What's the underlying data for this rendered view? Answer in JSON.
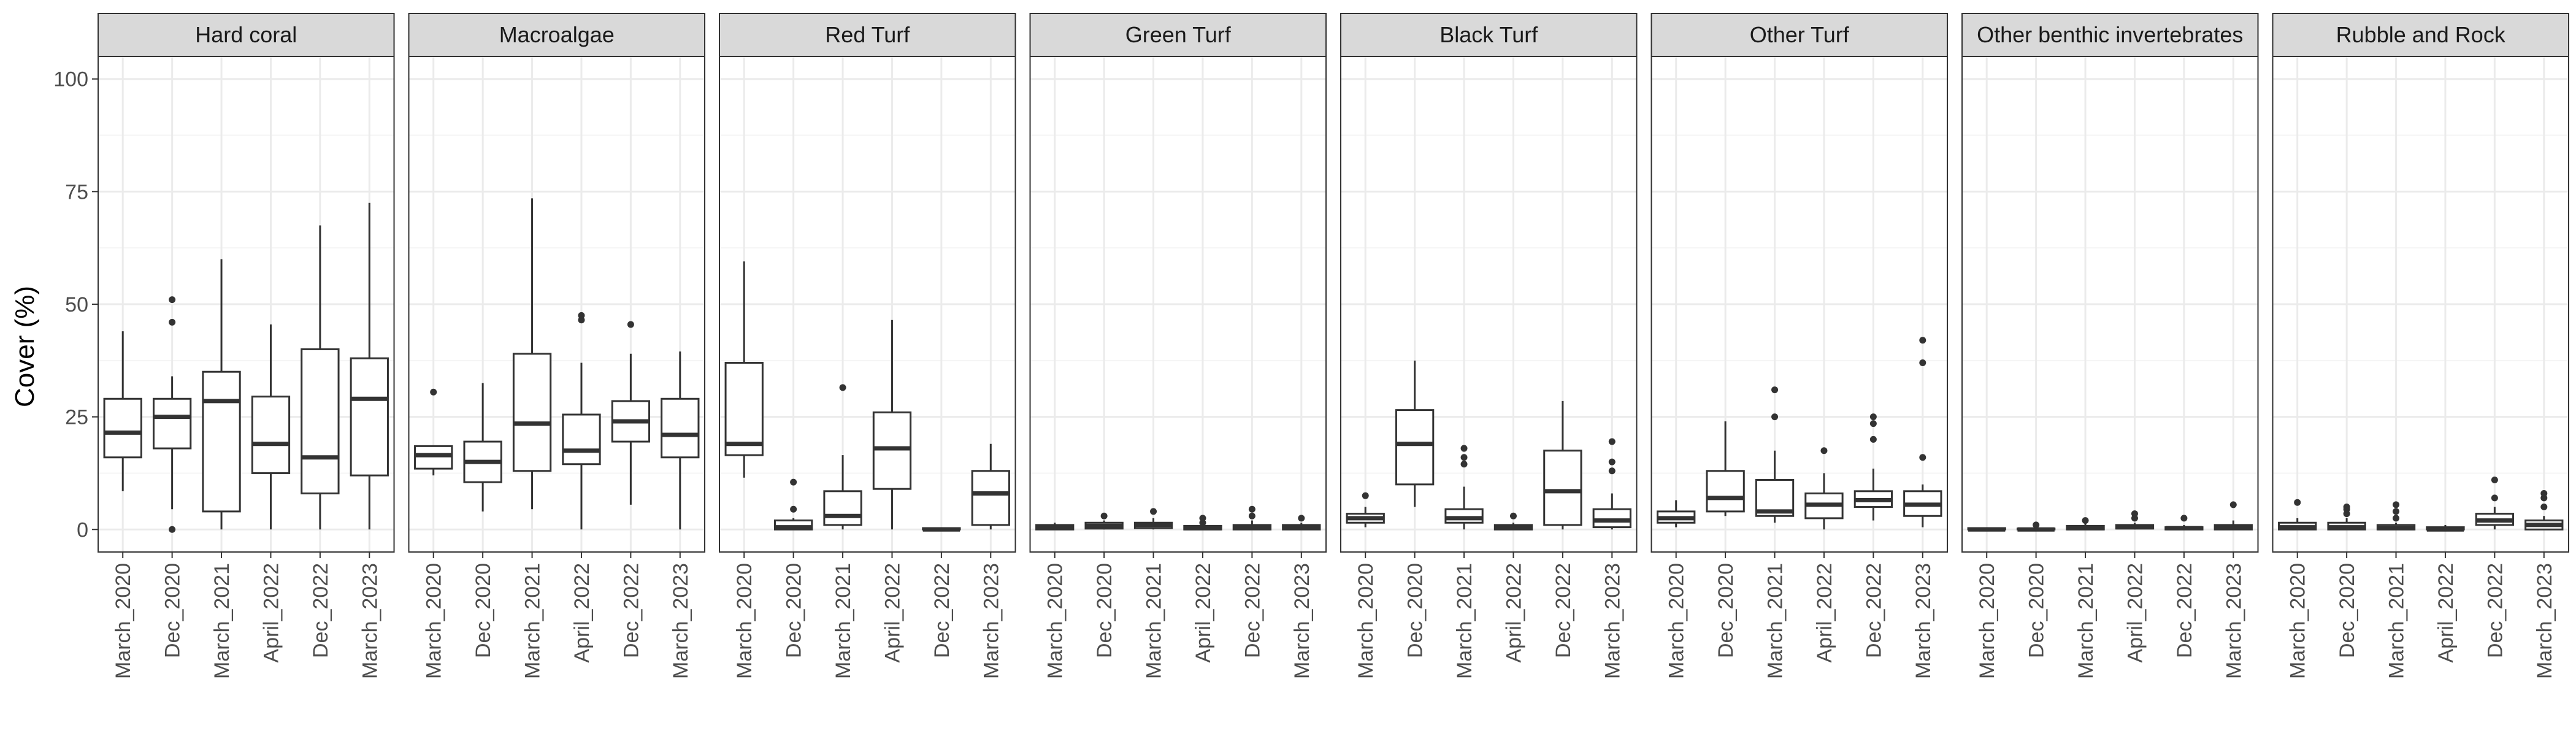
{
  "chart_data": {
    "type": "box",
    "ylabel": "Cover (%)",
    "xlabel": "",
    "ylim": [
      0,
      100
    ],
    "yticks": [
      0,
      25,
      50,
      75,
      100
    ],
    "categories": [
      "March_2020",
      "Dec_2020",
      "March_2021",
      "April_2022",
      "Dec_2022",
      "March_2023"
    ],
    "grid": true,
    "theme": "bw",
    "colors": {
      "box_line": "#333333",
      "strip_fill": "#d9d9d9",
      "grid_major": "#ebebeb",
      "grid_minor": "#f5f5f5",
      "panel_border": "#333333"
    },
    "panels": [
      {
        "name": "Hard coral",
        "boxes": [
          {
            "category": "March_2020",
            "lower_whisker": 8.5,
            "q1": 16,
            "median": 21.5,
            "q3": 29,
            "upper_whisker": 44,
            "outliers": []
          },
          {
            "category": "Dec_2020",
            "lower_whisker": 4.5,
            "q1": 18,
            "median": 25,
            "q3": 29,
            "upper_whisker": 34,
            "outliers": [
              0,
              46,
              51
            ]
          },
          {
            "category": "March_2021",
            "lower_whisker": 0,
            "q1": 4,
            "median": 28.5,
            "q3": 35,
            "upper_whisker": 60,
            "outliers": []
          },
          {
            "category": "April_2022",
            "lower_whisker": 0,
            "q1": 12.5,
            "median": 19,
            "q3": 29.5,
            "upper_whisker": 45.5,
            "outliers": []
          },
          {
            "category": "Dec_2022",
            "lower_whisker": 0,
            "q1": 8,
            "median": 16,
            "q3": 40,
            "upper_whisker": 67.5,
            "outliers": []
          },
          {
            "category": "March_2023",
            "lower_whisker": 0,
            "q1": 12,
            "median": 29,
            "q3": 38,
            "upper_whisker": 72.5,
            "outliers": []
          }
        ]
      },
      {
        "name": "Macroalgae",
        "boxes": [
          {
            "category": "March_2020",
            "lower_whisker": 12,
            "q1": 13.5,
            "median": 16.5,
            "q3": 18.5,
            "upper_whisker": 18.5,
            "outliers": [
              30.5
            ]
          },
          {
            "category": "Dec_2020",
            "lower_whisker": 4,
            "q1": 10.5,
            "median": 15,
            "q3": 19.5,
            "upper_whisker": 32.5,
            "outliers": []
          },
          {
            "category": "March_2021",
            "lower_whisker": 4.5,
            "q1": 13,
            "median": 23.5,
            "q3": 39,
            "upper_whisker": 73.5,
            "outliers": []
          },
          {
            "category": "April_2022",
            "lower_whisker": 0,
            "q1": 14.5,
            "median": 17.5,
            "q3": 25.5,
            "upper_whisker": 37,
            "outliers": [
              46.5,
              47.5
            ]
          },
          {
            "category": "Dec_2022",
            "lower_whisker": 5.5,
            "q1": 19.5,
            "median": 24,
            "q3": 28.5,
            "upper_whisker": 39,
            "outliers": [
              45.5
            ]
          },
          {
            "category": "March_2023",
            "lower_whisker": 0,
            "q1": 16,
            "median": 21,
            "q3": 29,
            "upper_whisker": 39.5,
            "outliers": []
          }
        ]
      },
      {
        "name": "Red Turf",
        "boxes": [
          {
            "category": "March_2020",
            "lower_whisker": 11.5,
            "q1": 16.5,
            "median": 19,
            "q3": 37,
            "upper_whisker": 59.5,
            "outliers": []
          },
          {
            "category": "Dec_2020",
            "lower_whisker": 0,
            "q1": 0,
            "median": 0.5,
            "q3": 2,
            "upper_whisker": 2.5,
            "outliers": [
              4.5,
              10.5
            ]
          },
          {
            "category": "March_2021",
            "lower_whisker": 0,
            "q1": 1,
            "median": 3,
            "q3": 8.5,
            "upper_whisker": 16.5,
            "outliers": [
              31.5
            ]
          },
          {
            "category": "April_2022",
            "lower_whisker": 0,
            "q1": 9,
            "median": 18,
            "q3": 26,
            "upper_whisker": 46.5,
            "outliers": []
          },
          {
            "category": "Dec_2022",
            "lower_whisker": 0,
            "q1": 0,
            "median": 0,
            "q3": 0.3,
            "upper_whisker": 0.5,
            "outliers": []
          },
          {
            "category": "March_2023",
            "lower_whisker": 0,
            "q1": 1,
            "median": 8,
            "q3": 13,
            "upper_whisker": 19,
            "outliers": []
          }
        ]
      },
      {
        "name": "Green Turf",
        "boxes": [
          {
            "category": "March_2020",
            "lower_whisker": 0,
            "q1": 0,
            "median": 0.5,
            "q3": 1,
            "upper_whisker": 1.5,
            "outliers": []
          },
          {
            "category": "Dec_2020",
            "lower_whisker": 0,
            "q1": 0.2,
            "median": 0.8,
            "q3": 1.5,
            "upper_whisker": 2,
            "outliers": [
              3
            ]
          },
          {
            "category": "March_2021",
            "lower_whisker": 0,
            "q1": 0.3,
            "median": 1,
            "q3": 1.5,
            "upper_whisker": 2.5,
            "outliers": [
              4
            ]
          },
          {
            "category": "April_2022",
            "lower_whisker": 0,
            "q1": 0,
            "median": 0.3,
            "q3": 0.8,
            "upper_whisker": 1,
            "outliers": [
              1.5,
              2.5
            ]
          },
          {
            "category": "Dec_2022",
            "lower_whisker": 0,
            "q1": 0,
            "median": 0.5,
            "q3": 1,
            "upper_whisker": 2,
            "outliers": [
              3,
              4.5
            ]
          },
          {
            "category": "March_2023",
            "lower_whisker": 0,
            "q1": 0,
            "median": 0.5,
            "q3": 1,
            "upper_whisker": 1.5,
            "outliers": [
              2.5
            ]
          }
        ]
      },
      {
        "name": "Black Turf",
        "boxes": [
          {
            "category": "March_2020",
            "lower_whisker": 0.5,
            "q1": 1.5,
            "median": 2.5,
            "q3": 3.5,
            "upper_whisker": 5,
            "outliers": [
              7.5
            ]
          },
          {
            "category": "Dec_2020",
            "lower_whisker": 5,
            "q1": 10,
            "median": 19,
            "q3": 26.5,
            "upper_whisker": 37.5,
            "outliers": []
          },
          {
            "category": "March_2021",
            "lower_whisker": 0,
            "q1": 1.5,
            "median": 2.5,
            "q3": 4.5,
            "upper_whisker": 9.5,
            "outliers": [
              14.5,
              16,
              18
            ]
          },
          {
            "category": "April_2022",
            "lower_whisker": 0,
            "q1": 0,
            "median": 0.5,
            "q3": 1,
            "upper_whisker": 1.5,
            "outliers": [
              3
            ]
          },
          {
            "category": "Dec_2022",
            "lower_whisker": 0,
            "q1": 1,
            "median": 8.5,
            "q3": 17.5,
            "upper_whisker": 28.5,
            "outliers": []
          },
          {
            "category": "March_2023",
            "lower_whisker": 0,
            "q1": 0.5,
            "median": 2,
            "q3": 4.5,
            "upper_whisker": 8,
            "outliers": [
              13,
              15,
              19.5
            ]
          }
        ]
      },
      {
        "name": "Other Turf",
        "boxes": [
          {
            "category": "March_2020",
            "lower_whisker": 0.5,
            "q1": 1.5,
            "median": 2.5,
            "q3": 4,
            "upper_whisker": 6.5,
            "outliers": []
          },
          {
            "category": "Dec_2020",
            "lower_whisker": 3,
            "q1": 4,
            "median": 7,
            "q3": 13,
            "upper_whisker": 24,
            "outliers": []
          },
          {
            "category": "March_2021",
            "lower_whisker": 1.5,
            "q1": 3,
            "median": 4,
            "q3": 11,
            "upper_whisker": 17.5,
            "outliers": [
              25,
              31
            ]
          },
          {
            "category": "April_2022",
            "lower_whisker": 0,
            "q1": 2.5,
            "median": 5.5,
            "q3": 8,
            "upper_whisker": 12.5,
            "outliers": [
              17.5
            ]
          },
          {
            "category": "Dec_2022",
            "lower_whisker": 2,
            "q1": 5,
            "median": 6.5,
            "q3": 8.5,
            "upper_whisker": 13.5,
            "outliers": [
              20,
              23.5,
              25
            ]
          },
          {
            "category": "March_2023",
            "lower_whisker": 0.5,
            "q1": 3,
            "median": 5.5,
            "q3": 8.5,
            "upper_whisker": 10,
            "outliers": [
              16,
              37,
              42
            ]
          }
        ]
      },
      {
        "name": "Other benthic invertebrates",
        "boxes": [
          {
            "category": "March_2020",
            "lower_whisker": 0,
            "q1": 0,
            "median": 0,
            "q3": 0.3,
            "upper_whisker": 0.5,
            "outliers": []
          },
          {
            "category": "Dec_2020",
            "lower_whisker": 0,
            "q1": 0,
            "median": 0,
            "q3": 0.2,
            "upper_whisker": 0.5,
            "outliers": [
              1
            ]
          },
          {
            "category": "March_2021",
            "lower_whisker": 0,
            "q1": 0,
            "median": 0.3,
            "q3": 0.8,
            "upper_whisker": 1.5,
            "outliers": [
              2
            ]
          },
          {
            "category": "April_2022",
            "lower_whisker": 0,
            "q1": 0.2,
            "median": 0.5,
            "q3": 1,
            "upper_whisker": 1.5,
            "outliers": [
              2.5,
              3.5
            ]
          },
          {
            "category": "Dec_2022",
            "lower_whisker": 0,
            "q1": 0,
            "median": 0.3,
            "q3": 0.5,
            "upper_whisker": 1,
            "outliers": [
              2.5
            ]
          },
          {
            "category": "March_2023",
            "lower_whisker": 0,
            "q1": 0,
            "median": 0.5,
            "q3": 1,
            "upper_whisker": 2,
            "outliers": [
              5.5
            ]
          }
        ]
      },
      {
        "name": "Rubble and Rock",
        "boxes": [
          {
            "category": "March_2020",
            "lower_whisker": 0,
            "q1": 0,
            "median": 0.5,
            "q3": 1.5,
            "upper_whisker": 2.5,
            "outliers": [
              6
            ]
          },
          {
            "category": "Dec_2020",
            "lower_whisker": 0,
            "q1": 0,
            "median": 0.5,
            "q3": 1.5,
            "upper_whisker": 2.5,
            "outliers": [
              3.5,
              4.5,
              5
            ]
          },
          {
            "category": "March_2021",
            "lower_whisker": 0,
            "q1": 0,
            "median": 0.3,
            "q3": 1,
            "upper_whisker": 1.5,
            "outliers": [
              2.5,
              4,
              5.5
            ]
          },
          {
            "category": "April_2022",
            "lower_whisker": 0,
            "q1": 0,
            "median": 0,
            "q3": 0.5,
            "upper_whisker": 1,
            "outliers": []
          },
          {
            "category": "Dec_2022",
            "lower_whisker": 0,
            "q1": 1,
            "median": 2,
            "q3": 3.5,
            "upper_whisker": 5,
            "outliers": [
              7,
              11
            ]
          },
          {
            "category": "March_2023",
            "lower_whisker": 0,
            "q1": 0,
            "median": 1,
            "q3": 2,
            "upper_whisker": 3,
            "outliers": [
              5,
              7,
              8
            ]
          }
        ]
      }
    ]
  }
}
